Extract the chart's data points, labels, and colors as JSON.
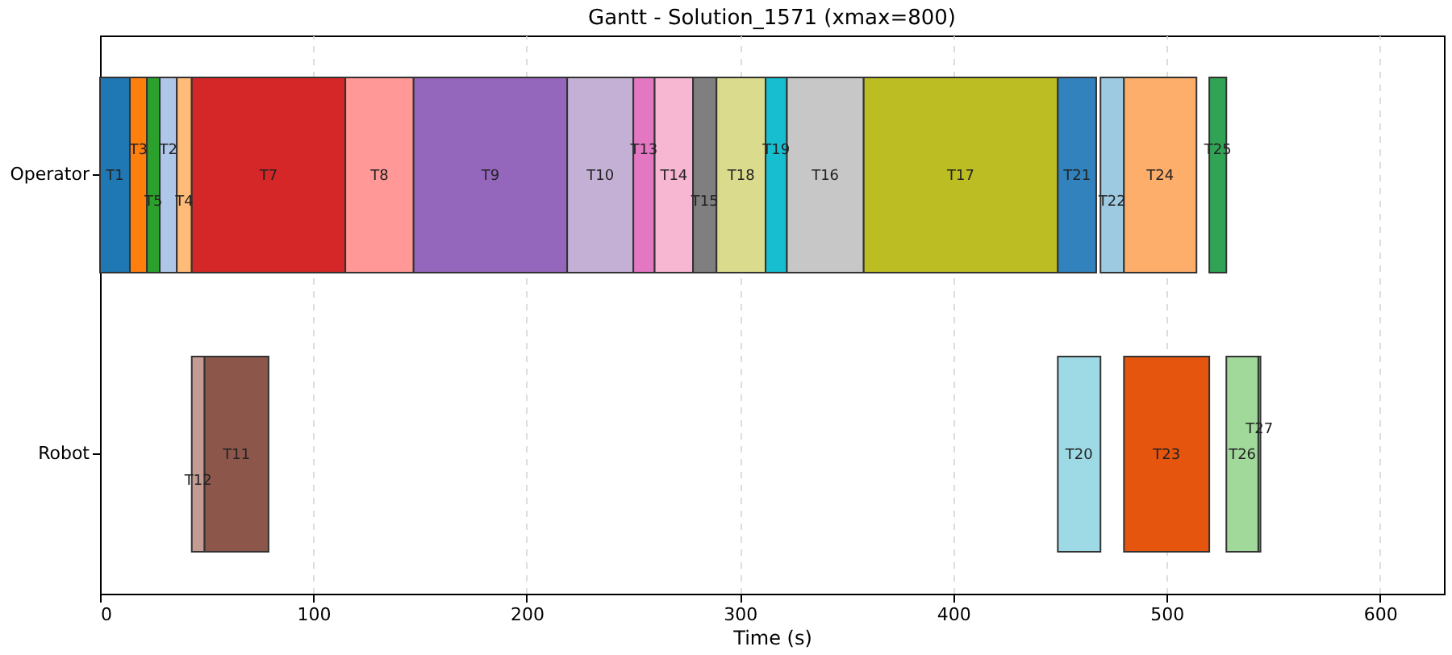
{
  "chart_data": {
    "type": "bar",
    "orientation": "horizontal",
    "title": "Gantt - Solution_1571 (xmax=800)",
    "xlabel": "Time (s)",
    "categories": [
      "Operator",
      "Robot"
    ],
    "xlim": [
      0,
      630
    ],
    "xticks": [
      0,
      100,
      200,
      300,
      400,
      500,
      600
    ],
    "grid": "x",
    "legend": false,
    "series": [
      {
        "name": "T1",
        "color": "#1f77b4",
        "base": [
          0,
          null
        ],
        "values": [
          14,
          null
        ]
      },
      {
        "name": "T3",
        "color": "#ff7f0e",
        "base": [
          14,
          null
        ],
        "values": [
          8,
          null
        ]
      },
      {
        "name": "T5",
        "color": "#2ca02c",
        "base": [
          22,
          null
        ],
        "values": [
          6,
          null
        ]
      },
      {
        "name": "T2",
        "color": "#aec7e8",
        "base": [
          28,
          null
        ],
        "values": [
          8,
          null
        ]
      },
      {
        "name": "T4",
        "color": "#ffbb78",
        "base": [
          36,
          null
        ],
        "values": [
          7,
          null
        ]
      },
      {
        "name": "T7",
        "color": "#d62728",
        "base": [
          43,
          null
        ],
        "values": [
          72,
          null
        ]
      },
      {
        "name": "T8",
        "color": "#ff9896",
        "base": [
          115,
          null
        ],
        "values": [
          32,
          null
        ]
      },
      {
        "name": "T9",
        "color": "#9467bd",
        "base": [
          147,
          null
        ],
        "values": [
          72,
          null
        ]
      },
      {
        "name": "T10",
        "color": "#c5b0d5",
        "base": [
          219,
          null
        ],
        "values": [
          31,
          null
        ]
      },
      {
        "name": "T13",
        "color": "#e377c2",
        "base": [
          250,
          null
        ],
        "values": [
          10,
          null
        ]
      },
      {
        "name": "T14",
        "color": "#f7b6d2",
        "base": [
          260,
          null
        ],
        "values": [
          18,
          null
        ]
      },
      {
        "name": "T15",
        "color": "#7f7f7f",
        "base": [
          278,
          null
        ],
        "values": [
          11,
          null
        ]
      },
      {
        "name": "T18",
        "color": "#dbdb8d",
        "base": [
          289,
          null
        ],
        "values": [
          23,
          null
        ]
      },
      {
        "name": "T19",
        "color": "#17becf",
        "base": [
          312,
          null
        ],
        "values": [
          10,
          null
        ]
      },
      {
        "name": "T16",
        "color": "#c7c7c7",
        "base": [
          322,
          null
        ],
        "values": [
          36,
          null
        ]
      },
      {
        "name": "T17",
        "color": "#bcbd22",
        "base": [
          358,
          null
        ],
        "values": [
          91,
          null
        ]
      },
      {
        "name": "T21",
        "color": "#3182bd",
        "base": [
          449,
          null
        ],
        "values": [
          18,
          null
        ]
      },
      {
        "name": "T22",
        "color": "#9ecae1",
        "base": [
          469,
          null
        ],
        "values": [
          11,
          null
        ]
      },
      {
        "name": "T24",
        "color": "#fdae6b",
        "base": [
          480,
          null
        ],
        "values": [
          34,
          null
        ]
      },
      {
        "name": "T25",
        "color": "#31a354",
        "base": [
          520,
          null
        ],
        "values": [
          8,
          null
        ]
      },
      {
        "name": "T12",
        "color": "#c49c94",
        "base": [
          null,
          43
        ],
        "values": [
          null,
          6
        ]
      },
      {
        "name": "T11",
        "color": "#8c564b",
        "base": [
          null,
          49
        ],
        "values": [
          null,
          30
        ]
      },
      {
        "name": "T20",
        "color": "#9edae5",
        "base": [
          null,
          449
        ],
        "values": [
          null,
          20
        ]
      },
      {
        "name": "T23",
        "color": "#e6550d",
        "base": [
          null,
          480
        ],
        "values": [
          null,
          40
        ]
      },
      {
        "name": "T26",
        "color": "#a1d99b",
        "base": [
          null,
          528
        ],
        "values": [
          null,
          15
        ]
      },
      {
        "name": "T27",
        "color": "#74c476",
        "base": [
          null,
          543
        ],
        "values": [
          null,
          1
        ]
      }
    ]
  }
}
